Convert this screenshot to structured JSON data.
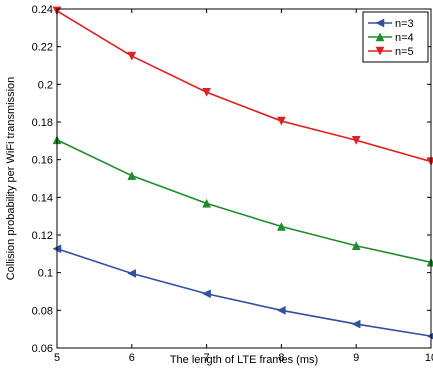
{
  "chart_data": {
    "type": "line",
    "xlabel": "The length of LTE frames (ms)",
    "ylabel": "Collision probability per WiFi transmission",
    "x": [
      5,
      6,
      7,
      8,
      9,
      10
    ],
    "xlim": [
      5,
      10
    ],
    "ylim": [
      0.06,
      0.24
    ],
    "x_ticks": [
      5,
      6,
      7,
      8,
      9,
      10
    ],
    "x_tick_labels": [
      "5",
      "6",
      "7",
      "8",
      "9",
      "10"
    ],
    "y_ticks": [
      0.06,
      0.08,
      0.1,
      0.12,
      0.14,
      0.16,
      0.18,
      0.2,
      0.22,
      0.24
    ],
    "y_tick_labels": [
      "0.06",
      "0.08",
      "0.1",
      "0.12",
      "0.14",
      "0.16",
      "0.18",
      "0.2",
      "0.22",
      "0.24"
    ],
    "grid": false,
    "legend_position": "top-right",
    "series": [
      {
        "name": "n=3",
        "color": "#3050a0",
        "marker": "triangle-left",
        "values": [
          0.1127,
          0.0996,
          0.0888,
          0.08,
          0.0727,
          0.0663
        ]
      },
      {
        "name": "n=4",
        "color": "#1e8c2c",
        "marker": "triangle-up",
        "values": [
          0.1705,
          0.1515,
          0.1368,
          0.1245,
          0.1143,
          0.1055
        ]
      },
      {
        "name": "n=5",
        "color": "#e02020",
        "marker": "triangle-down",
        "values": [
          0.239,
          0.215,
          0.1958,
          0.1805,
          0.1703,
          0.159
        ]
      }
    ]
  }
}
